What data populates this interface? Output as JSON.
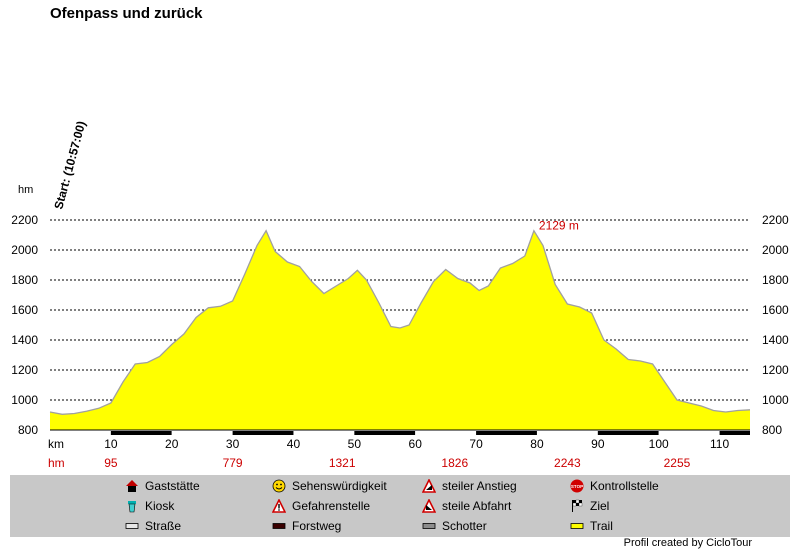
{
  "title": "Ofenpass und zurück",
  "credit": "Profil created by CicloTour",
  "start_label": "Start: (10:57:00)",
  "colors": {
    "fill": "#ffff00",
    "outline": "#a0a0a0",
    "peak_label": "#cc0000",
    "hm_row": "#cc0000",
    "legend_bg": "#c8c8c8"
  },
  "chart_data": {
    "type": "area",
    "title": "Ofenpass und zurück",
    "ylabel": "hm",
    "xlabel": "km",
    "xlim": [
      0,
      115
    ],
    "ylim": [
      800,
      2200
    ],
    "y_ticks": [
      800,
      1000,
      1200,
      1400,
      1600,
      1800,
      2000,
      2200
    ],
    "x_ticks": [
      10,
      20,
      30,
      40,
      50,
      60,
      70,
      80,
      90,
      100,
      110
    ],
    "grid": true,
    "peak_annotation": {
      "text": "2129 m",
      "x": 79.5,
      "y": 2129
    },
    "hm_row": {
      "label": "hm",
      "entries": [
        {
          "x": 10,
          "text": "95"
        },
        {
          "x": 30,
          "text": "779"
        },
        {
          "x": 48,
          "text": "1321"
        },
        {
          "x": 66.5,
          "text": "1826"
        },
        {
          "x": 85,
          "text": "2243"
        },
        {
          "x": 103,
          "text": "2255"
        }
      ]
    },
    "x": [
      0,
      2,
      4,
      6,
      8,
      10,
      12,
      14,
      16,
      18,
      20,
      22,
      24,
      26,
      28,
      30,
      32,
      34,
      35.5,
      37,
      39,
      41,
      43,
      45,
      47,
      49,
      50.5,
      52,
      54,
      56,
      57.5,
      59,
      61,
      63,
      65,
      67,
      69,
      70.5,
      72,
      74,
      76,
      78,
      79.5,
      81,
      83,
      85,
      87,
      89,
      91,
      93,
      95,
      97,
      99,
      101,
      103,
      105,
      107,
      109,
      111,
      113,
      115
    ],
    "y": [
      920,
      905,
      910,
      925,
      945,
      980,
      1120,
      1240,
      1250,
      1290,
      1370,
      1440,
      1550,
      1615,
      1625,
      1660,
      1840,
      2030,
      2129,
      1990,
      1920,
      1890,
      1790,
      1710,
      1760,
      1810,
      1865,
      1800,
      1650,
      1490,
      1480,
      1500,
      1650,
      1790,
      1870,
      1810,
      1780,
      1730,
      1760,
      1880,
      1910,
      1960,
      2129,
      2030,
      1770,
      1640,
      1620,
      1580,
      1400,
      1340,
      1270,
      1260,
      1240,
      1120,
      1000,
      980,
      960,
      930,
      920,
      930,
      935
    ]
  },
  "legend": [
    {
      "icon": "restaurant-icon",
      "label": "Gaststätte"
    },
    {
      "icon": "smiley-icon",
      "label": "Sehenswürdigkeit"
    },
    {
      "icon": "steep-climb-icon",
      "label": "steiler Anstieg"
    },
    {
      "icon": "stop-icon",
      "label": "Kontrollstelle"
    },
    {
      "icon": "kiosk-icon",
      "label": "Kiosk"
    },
    {
      "icon": "danger-icon",
      "label": "Gefahrenstelle"
    },
    {
      "icon": "steep-descent-icon",
      "label": "steile Abfahrt"
    },
    {
      "icon": "finish-flag-icon",
      "label": "Ziel"
    },
    {
      "icon": "road-swatch-icon",
      "label": "Straße"
    },
    {
      "icon": "forest-road-swatch-icon",
      "label": "Forstweg"
    },
    {
      "icon": "gravel-swatch-icon",
      "label": "Schotter"
    },
    {
      "icon": "trail-swatch-icon",
      "label": "Trail"
    }
  ]
}
